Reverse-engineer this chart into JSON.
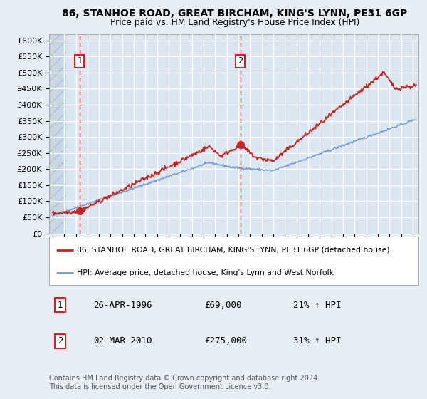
{
  "title": "86, STANHOE ROAD, GREAT BIRCHAM, KING'S LYNN, PE31 6GP",
  "subtitle": "Price paid vs. HM Land Registry's House Price Index (HPI)",
  "background_color": "#e8eef5",
  "plot_bg_color": "#dce6f0",
  "line1_color": "#cc2222",
  "line2_color": "#7799cc",
  "ylim": [
    0,
    620000
  ],
  "yticks": [
    0,
    50000,
    100000,
    150000,
    200000,
    250000,
    300000,
    350000,
    400000,
    450000,
    500000,
    550000,
    600000
  ],
  "ytick_labels": [
    "£0",
    "£50K",
    "£100K",
    "£150K",
    "£200K",
    "£250K",
    "£300K",
    "£350K",
    "£400K",
    "£450K",
    "£500K",
    "£550K",
    "£600K"
  ],
  "xlim_start": 1993.7,
  "xlim_end": 2025.5,
  "sale1_x": 1996.32,
  "sale1_y": 69000,
  "sale2_x": 2010.17,
  "sale2_y": 275000,
  "legend_line1": "86, STANHOE ROAD, GREAT BIRCHAM, KING'S LYNN, PE31 6GP (detached house)",
  "legend_line2": "HPI: Average price, detached house, King's Lynn and West Norfolk",
  "annotation1_label": "1",
  "annotation1_date": "26-APR-1996",
  "annotation1_price": "£69,000",
  "annotation1_hpi": "21% ↑ HPI",
  "annotation2_label": "2",
  "annotation2_date": "02-MAR-2010",
  "annotation2_price": "£275,000",
  "annotation2_hpi": "31% ↑ HPI",
  "footer": "Contains HM Land Registry data © Crown copyright and database right 2024.\nThis data is licensed under the Open Government Licence v3.0."
}
